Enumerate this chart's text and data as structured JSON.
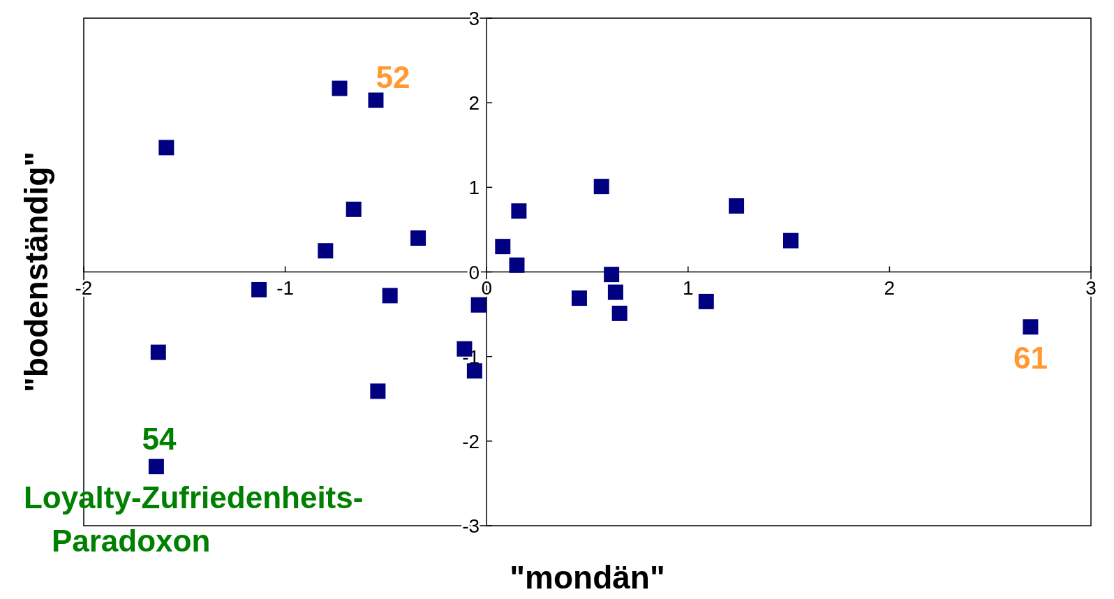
{
  "chart_data": {
    "type": "scatter",
    "xlabel": "\"mondän\"",
    "ylabel": "\"bodenständig\"",
    "x": [
      -0.73,
      -0.55,
      -1.59,
      -0.66,
      -0.34,
      -0.8,
      -1.13,
      -0.48,
      -1.63,
      -0.54,
      -1.64,
      -0.04,
      -0.11,
      -0.06,
      0.08,
      0.16,
      0.15,
      0.57,
      0.62,
      0.64,
      0.66,
      0.46,
      1.09,
      1.24,
      1.51,
      2.7
    ],
    "values": [
      2.17,
      2.03,
      1.47,
      0.74,
      0.4,
      0.25,
      -0.21,
      -0.28,
      -0.95,
      -1.41,
      -2.3,
      -0.39,
      -0.91,
      -1.17,
      0.3,
      0.72,
      0.08,
      1.01,
      -0.03,
      -0.24,
      -0.49,
      -0.31,
      -0.35,
      0.78,
      0.37,
      -0.65
    ],
    "color": "#000080",
    "marker": "square",
    "xlim": [
      -2,
      3
    ],
    "xticks": [
      -2,
      -1,
      0,
      1,
      2,
      3
    ],
    "ylim": [
      -3,
      3
    ],
    "yticks": [
      -3,
      -2,
      -1,
      0,
      1,
      2,
      3
    ],
    "grid": false,
    "annotations": [
      {
        "text": "52",
        "x": -0.55,
        "y": 2.03
      },
      {
        "text": "61",
        "x": 2.7,
        "y": -0.65
      },
      {
        "text": "54",
        "x": -1.64,
        "y": -2.3
      },
      {
        "text": "Loyalty-Zufriedenheits-\nParadoxon",
        "x": -1.64,
        "y": -2.3
      }
    ]
  }
}
